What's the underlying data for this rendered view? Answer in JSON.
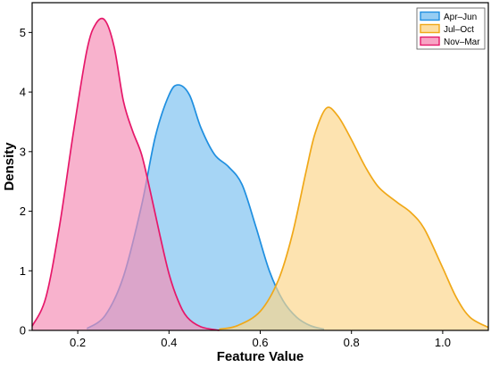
{
  "chart_data": {
    "type": "area",
    "title": "",
    "xlabel": "Feature Value",
    "ylabel": "Density",
    "xlim": [
      0.1,
      1.1
    ],
    "ylim": [
      0,
      5.5
    ],
    "xticks": [
      0.2,
      0.4,
      0.6,
      0.8,
      1.0
    ],
    "xtick_labels": [
      "0.2",
      "0.4",
      "0.6",
      "0.8",
      "1.0"
    ],
    "yticks": [
      0,
      1,
      2,
      3,
      4,
      5
    ],
    "ytick_labels": [
      "0",
      "1",
      "2",
      "3",
      "4",
      "5"
    ],
    "grid": false,
    "legend_position": "top-right",
    "series": [
      {
        "name": "Apr–Jun",
        "color": "#1f8fe0",
        "fill": "#7cc1f0",
        "x": [
          0.22,
          0.26,
          0.3,
          0.34,
          0.37,
          0.4,
          0.42,
          0.445,
          0.47,
          0.5,
          0.53,
          0.56,
          0.59,
          0.62,
          0.65,
          0.68,
          0.71,
          0.74
        ],
        "y": [
          0.03,
          0.25,
          0.9,
          2.1,
          3.25,
          3.95,
          4.12,
          3.95,
          3.4,
          2.95,
          2.75,
          2.45,
          1.75,
          1.0,
          0.5,
          0.22,
          0.08,
          0.02
        ]
      },
      {
        "name": "Jul–Oct",
        "color": "#f0a818",
        "fill": "#fcd68a",
        "x": [
          0.51,
          0.55,
          0.6,
          0.64,
          0.67,
          0.7,
          0.72,
          0.745,
          0.77,
          0.8,
          0.83,
          0.86,
          0.9,
          0.93,
          0.96,
          1.0,
          1.03,
          1.06,
          1.1
        ],
        "y": [
          0.02,
          0.08,
          0.32,
          0.85,
          1.6,
          2.65,
          3.3,
          3.73,
          3.6,
          3.2,
          2.75,
          2.4,
          2.15,
          1.98,
          1.7,
          1.05,
          0.55,
          0.22,
          0.05
        ]
      },
      {
        "name": "Nov–Mar",
        "color": "#e6186a",
        "fill": "#f58db5",
        "x": [
          0.1,
          0.13,
          0.16,
          0.19,
          0.22,
          0.24,
          0.26,
          0.28,
          0.3,
          0.32,
          0.34,
          0.36,
          0.38,
          0.4,
          0.42,
          0.44,
          0.47,
          0.51
        ],
        "y": [
          0.07,
          0.55,
          1.75,
          3.3,
          4.7,
          5.15,
          5.2,
          4.75,
          3.85,
          3.35,
          2.95,
          2.3,
          1.6,
          0.95,
          0.5,
          0.22,
          0.06,
          0.0
        ]
      }
    ]
  }
}
